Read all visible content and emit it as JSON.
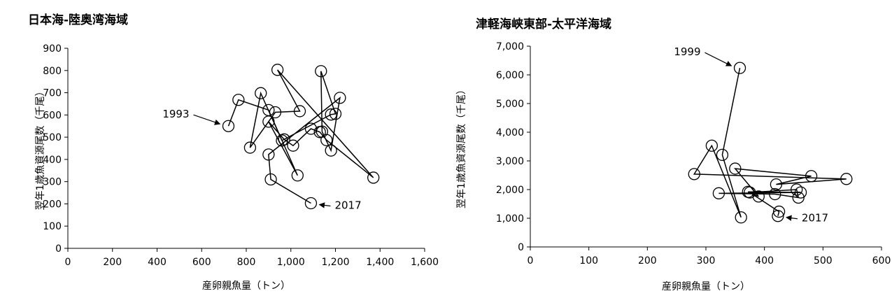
{
  "chart_data": [
    {
      "type": "scatter",
      "title": "日本海-陸奥湾海域",
      "xlabel": "産卵親魚量（トン）",
      "ylabel": "翌年1歳魚資源尾数（千尾）",
      "xlim": [
        0,
        1600
      ],
      "ylim": [
        0,
        900
      ],
      "xticks": [
        0,
        200,
        400,
        600,
        800,
        1000,
        1200,
        1400,
        1600
      ],
      "xtick_labels": [
        "0",
        "200",
        "400",
        "600",
        "800",
        "1,000",
        "1,200",
        "1,400",
        "1,600"
      ],
      "yticks": [
        0,
        100,
        200,
        300,
        400,
        500,
        600,
        700,
        800,
        900
      ],
      "ytick_labels": [
        "0",
        "100",
        "200",
        "300",
        "400",
        "500",
        "600",
        "700",
        "800",
        "900"
      ],
      "grid": false,
      "connected": true,
      "points": [
        {
          "x": 720,
          "y": 550
        },
        {
          "x": 765,
          "y": 668
        },
        {
          "x": 900,
          "y": 622
        },
        {
          "x": 1030,
          "y": 328
        },
        {
          "x": 900,
          "y": 570
        },
        {
          "x": 970,
          "y": 490
        },
        {
          "x": 1010,
          "y": 462
        },
        {
          "x": 1090,
          "y": 538
        },
        {
          "x": 1130,
          "y": 523
        },
        {
          "x": 1160,
          "y": 487
        },
        {
          "x": 1370,
          "y": 318
        },
        {
          "x": 940,
          "y": 803
        },
        {
          "x": 1040,
          "y": 617
        },
        {
          "x": 930,
          "y": 612
        },
        {
          "x": 817,
          "y": 453
        },
        {
          "x": 865,
          "y": 698
        },
        {
          "x": 960,
          "y": 485
        },
        {
          "x": 1180,
          "y": 602
        },
        {
          "x": 1200,
          "y": 605
        },
        {
          "x": 1135,
          "y": 797
        },
        {
          "x": 1140,
          "y": 525
        },
        {
          "x": 1180,
          "y": 440
        },
        {
          "x": 1220,
          "y": 677
        },
        {
          "x": 900,
          "y": 422
        },
        {
          "x": 910,
          "y": 310
        },
        {
          "x": 1090,
          "y": 203
        }
      ],
      "annotations": [
        {
          "text": "1993",
          "point_index": 0
        },
        {
          "text": "2017",
          "point_index": 25
        }
      ]
    },
    {
      "type": "scatter",
      "title": "津軽海峡東部-太平洋海域",
      "xlabel": "産卵親魚量（トン）",
      "ylabel": "翌年1歳魚資源尾数（千尾）",
      "xlim": [
        0,
        600
      ],
      "ylim": [
        0,
        7000
      ],
      "xticks": [
        0,
        100,
        200,
        300,
        400,
        500,
        600
      ],
      "xtick_labels": [
        "0",
        "100",
        "200",
        "300",
        "400",
        "500",
        "600"
      ],
      "yticks": [
        0,
        1000,
        2000,
        3000,
        4000,
        5000,
        6000,
        7000
      ],
      "ytick_labels": [
        "0",
        "1,000",
        "2,000",
        "3,000",
        "4,000",
        "5,000",
        "6,000",
        "7,000"
      ],
      "grid": false,
      "connected": true,
      "points": [
        {
          "x": 358,
          "y": 6240
        },
        {
          "x": 328,
          "y": 3210
        },
        {
          "x": 360,
          "y": 1030
        },
        {
          "x": 310,
          "y": 3530
        },
        {
          "x": 280,
          "y": 2540
        },
        {
          "x": 540,
          "y": 2370
        },
        {
          "x": 420,
          "y": 2180
        },
        {
          "x": 480,
          "y": 2470
        },
        {
          "x": 350,
          "y": 2730
        },
        {
          "x": 390,
          "y": 1760
        },
        {
          "x": 372,
          "y": 1920
        },
        {
          "x": 462,
          "y": 1900
        },
        {
          "x": 322,
          "y": 1870
        },
        {
          "x": 418,
          "y": 1840
        },
        {
          "x": 458,
          "y": 1720
        },
        {
          "x": 455,
          "y": 2000
        },
        {
          "x": 375,
          "y": 1900
        },
        {
          "x": 425,
          "y": 1230
        },
        {
          "x": 423,
          "y": 1080
        }
      ],
      "annotations": [
        {
          "text": "1999",
          "point_index": 0
        },
        {
          "text": "2017",
          "point_index": 18
        }
      ]
    }
  ]
}
